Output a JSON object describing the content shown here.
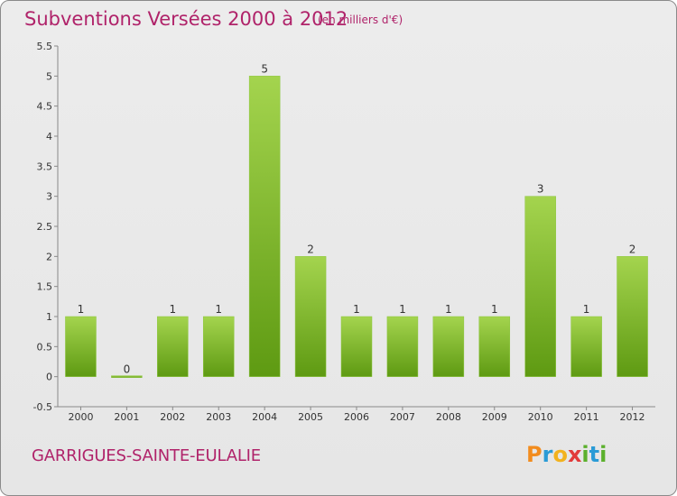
{
  "header": {
    "title": "Subventions Versées 2000 à 2012",
    "subtitle": "(en milliers d'€)"
  },
  "footer": {
    "commune": "GARRIGUES-SAINTE-EULALIE",
    "logo_letters": [
      "P",
      "r",
      "o",
      "x",
      "i",
      "t",
      "i"
    ]
  },
  "colors": {
    "title": "#b0236a",
    "bar_light": "#9fd04a",
    "bar_dark": "#5e9a12",
    "logo": [
      "#f28c1e",
      "#2a9bd6",
      "#f2b21e",
      "#e23a3a",
      "#5bb02c",
      "#2a9bd6",
      "#5bb02c"
    ]
  },
  "chart_data": {
    "type": "bar",
    "title": "Subventions Versées 2000 à 2012",
    "subtitle": "(en milliers d'€)",
    "categories": [
      "2000",
      "2001",
      "2002",
      "2003",
      "2004",
      "2005",
      "2006",
      "2007",
      "2008",
      "2009",
      "2010",
      "2011",
      "2012"
    ],
    "values": [
      1,
      0,
      1,
      1,
      5,
      2,
      1,
      1,
      1,
      1,
      3,
      1,
      2
    ],
    "ylim": [
      -0.5,
      5.5
    ],
    "yticks": [
      -0.5,
      0,
      0.5,
      1,
      1.5,
      2,
      2.5,
      3,
      3.5,
      4,
      4.5,
      5,
      5.5
    ],
    "grid": false,
    "data_labels": true
  }
}
